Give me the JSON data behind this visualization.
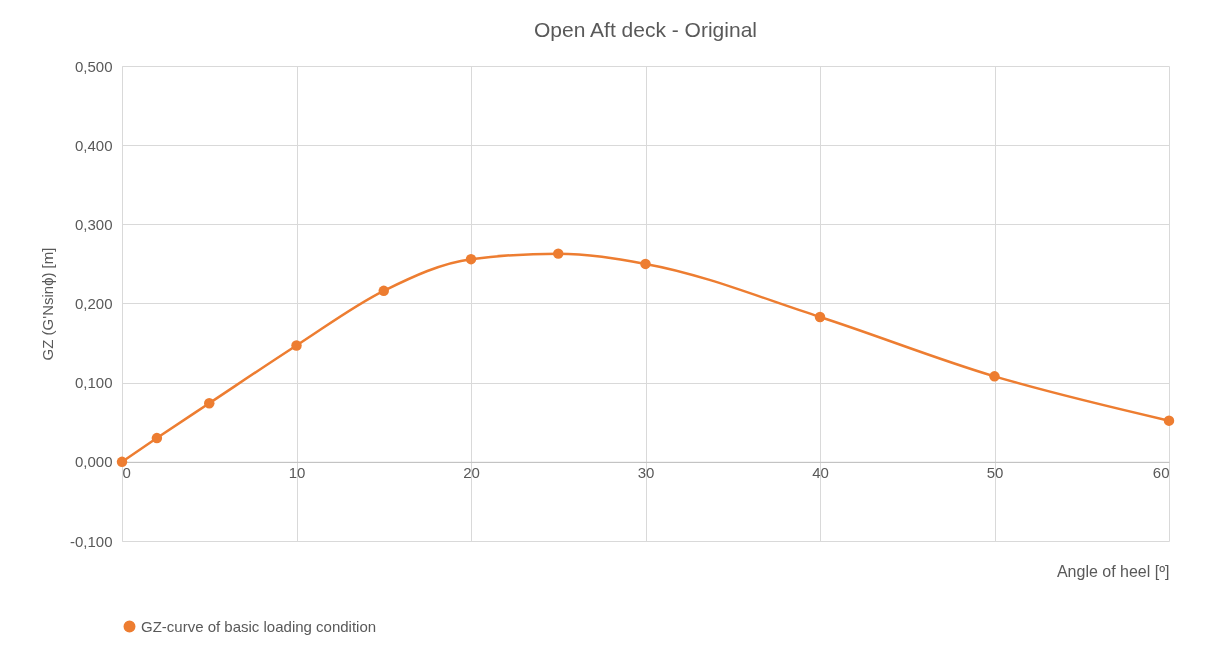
{
  "chart_data": {
    "type": "line",
    "title": "Open Aft deck - Original",
    "xlabel": "Angle of heel [º]",
    "ylabel": "GZ (G'Nsinɸ) [m]",
    "x": [
      0,
      2,
      5,
      10,
      15,
      20,
      25,
      30,
      40,
      50,
      60
    ],
    "series": [
      {
        "name": "GZ-curve of basic loading condition",
        "color": "#ed7d31",
        "values": [
          0,
          0.03,
          0.074,
          0.147,
          0.216,
          0.256,
          0.263,
          0.25,
          0.183,
          0.108,
          0.052
        ]
      }
    ],
    "xlim": [
      0,
      60
    ],
    "xticks": [
      0,
      10,
      20,
      30,
      40,
      50,
      60
    ],
    "ylim": [
      -0.1,
      0.5
    ],
    "yticks": [
      {
        "value": -0.1,
        "label": "-0,100"
      },
      {
        "value": 0,
        "label": "0,000"
      },
      {
        "value": 0.1,
        "label": "0,100"
      },
      {
        "value": 0.2,
        "label": "0,200"
      },
      {
        "value": 0.3,
        "label": "0,300"
      },
      {
        "value": 0.4,
        "label": "0,400"
      },
      {
        "value": 0.5,
        "label": "0,500"
      }
    ],
    "grid": true,
    "legend": "bottom",
    "marker": "circle",
    "line_style": "solid"
  }
}
